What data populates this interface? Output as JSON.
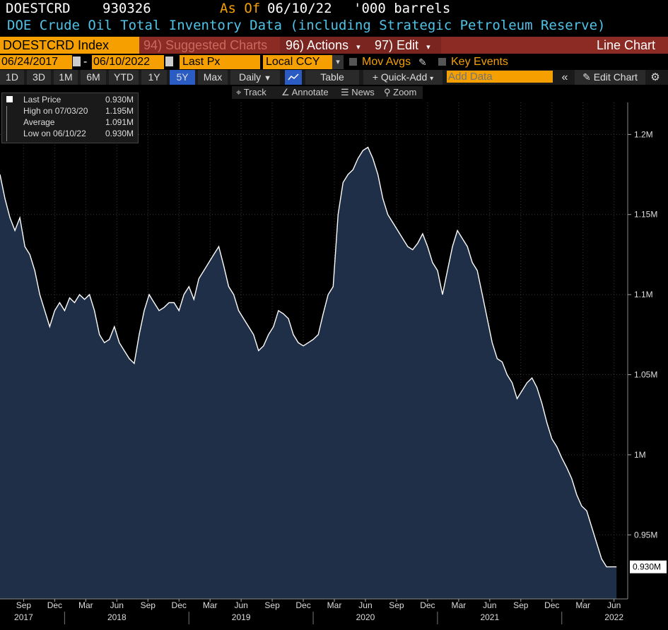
{
  "header": {
    "ticker": "DOESTCRD",
    "last_value": "930326",
    "as_of_label": "As Of",
    "as_of_date": "06/10/22",
    "units": "'000 barrels",
    "title": "DOE Crude Oil Total Inventory Data (including Strategic Petroleum Reserve)"
  },
  "toolbar": {
    "security": "DOESTCRD Index",
    "suggested_charts": "94) Suggested Charts",
    "actions": "96) Actions",
    "edit": "97) Edit",
    "chart_type": "Line Chart"
  },
  "range": {
    "start_date": "06/24/2017",
    "separator": "-",
    "end_date": "06/10/2022",
    "field": "Last Px",
    "currency": "Local CCY",
    "mov_avgs": "Mov Avgs",
    "key_events": "Key Events"
  },
  "timeframes": [
    "1D",
    "3D",
    "1M",
    "6M",
    "YTD",
    "1Y",
    "5Y",
    "Max"
  ],
  "active_timeframe": "5Y",
  "periodicity": "Daily",
  "table_label": "Table",
  "quick_add": "+ Quick-Add",
  "add_data_placeholder": "Add Data",
  "edit_chart": "Edit Chart",
  "tools": [
    "Track",
    "Annotate",
    "News",
    "Zoom"
  ],
  "legend": [
    {
      "label": "Last Price",
      "value": "0.930M"
    },
    {
      "label": "High on 07/03/20",
      "value": "1.195M"
    },
    {
      "label": "Average",
      "value": "1.091M"
    },
    {
      "label": "Low on 06/10/22",
      "value": "0.930M"
    }
  ],
  "colors": {
    "accent": "#f5a000",
    "area_fill": "#1f2f47",
    "line": "#ffffff",
    "header_bar": "#8b2b24",
    "title_cyan": "#4fc3e8"
  },
  "chart_data": {
    "type": "area",
    "ylim": [
      0.91,
      1.22
    ],
    "y_ticks": [
      0.95,
      1.0,
      1.05,
      1.1,
      1.15,
      1.2
    ],
    "y_tick_labels": [
      "0.95M",
      "1M",
      "1.05M",
      "1.1M",
      "1.15M",
      "1.2M"
    ],
    "last_label": "0.930M",
    "x_ticks": [
      {
        "t": 2017.67,
        "label": "Sep"
      },
      {
        "t": 2017.92,
        "label": "Dec"
      },
      {
        "t": 2018.17,
        "label": "Mar"
      },
      {
        "t": 2018.42,
        "label": "Jun"
      },
      {
        "t": 2018.67,
        "label": "Sep"
      },
      {
        "t": 2018.92,
        "label": "Dec"
      },
      {
        "t": 2019.17,
        "label": "Mar"
      },
      {
        "t": 2019.42,
        "label": "Jun"
      },
      {
        "t": 2019.67,
        "label": "Sep"
      },
      {
        "t": 2019.92,
        "label": "Dec"
      },
      {
        "t": 2020.17,
        "label": "Mar"
      },
      {
        "t": 2020.42,
        "label": "Jun"
      },
      {
        "t": 2020.67,
        "label": "Sep"
      },
      {
        "t": 2020.92,
        "label": "Dec"
      },
      {
        "t": 2021.17,
        "label": "Mar"
      },
      {
        "t": 2021.42,
        "label": "Jun"
      },
      {
        "t": 2021.67,
        "label": "Sep"
      },
      {
        "t": 2021.92,
        "label": "Dec"
      },
      {
        "t": 2022.17,
        "label": "Mar"
      },
      {
        "t": 2022.42,
        "label": "Jun"
      }
    ],
    "x_years": [
      {
        "t": 2017.67,
        "label": "2017"
      },
      {
        "t": 2018.42,
        "label": "2018"
      },
      {
        "t": 2019.42,
        "label": "2019"
      },
      {
        "t": 2020.42,
        "label": "2020"
      },
      {
        "t": 2021.42,
        "label": "2021"
      },
      {
        "t": 2022.42,
        "label": "2022"
      }
    ],
    "xlim": [
      2017.48,
      2022.53
    ],
    "series": [
      {
        "x": [
          2017.48,
          2017.52,
          2017.56,
          2017.6,
          2017.64,
          2017.68,
          2017.72,
          2017.76,
          2017.8,
          2017.84,
          2017.88,
          2017.92,
          2017.96,
          2018.0,
          2018.04,
          2018.08,
          2018.12,
          2018.16,
          2018.2,
          2018.24,
          2018.28,
          2018.32,
          2018.36,
          2018.4,
          2018.44,
          2018.48,
          2018.52,
          2018.56,
          2018.6,
          2018.64,
          2018.68,
          2018.72,
          2018.76,
          2018.8,
          2018.84,
          2018.88,
          2018.92,
          2018.96,
          2019.0,
          2019.04,
          2019.08,
          2019.12,
          2019.16,
          2019.2,
          2019.24,
          2019.28,
          2019.32,
          2019.36,
          2019.4,
          2019.44,
          2019.48,
          2019.52,
          2019.56,
          2019.6,
          2019.64,
          2019.68,
          2019.72,
          2019.76,
          2019.8,
          2019.84,
          2019.88,
          2019.92,
          2019.96,
          2020.0,
          2020.04,
          2020.08,
          2020.12,
          2020.16,
          2020.2,
          2020.24,
          2020.28,
          2020.32,
          2020.36,
          2020.4,
          2020.44,
          2020.48,
          2020.52,
          2020.56,
          2020.6,
          2020.64,
          2020.68,
          2020.72,
          2020.76,
          2020.8,
          2020.84,
          2020.88,
          2020.92,
          2020.96,
          2021.0,
          2021.04,
          2021.08,
          2021.12,
          2021.16,
          2021.2,
          2021.24,
          2021.28,
          2021.32,
          2021.36,
          2021.4,
          2021.44,
          2021.48,
          2021.52,
          2021.56,
          2021.6,
          2021.64,
          2021.68,
          2021.72,
          2021.76,
          2021.8,
          2021.84,
          2021.88,
          2021.92,
          2021.96,
          2022.0,
          2022.04,
          2022.08,
          2022.12,
          2022.16,
          2022.2,
          2022.24,
          2022.28,
          2022.32,
          2022.36,
          2022.4,
          2022.44
        ],
        "y": [
          1.175,
          1.16,
          1.148,
          1.14,
          1.148,
          1.13,
          1.125,
          1.115,
          1.1,
          1.09,
          1.08,
          1.09,
          1.095,
          1.09,
          1.098,
          1.095,
          1.1,
          1.097,
          1.1,
          1.09,
          1.075,
          1.07,
          1.072,
          1.08,
          1.07,
          1.065,
          1.06,
          1.057,
          1.075,
          1.09,
          1.1,
          1.095,
          1.09,
          1.092,
          1.095,
          1.095,
          1.09,
          1.1,
          1.105,
          1.097,
          1.11,
          1.115,
          1.12,
          1.125,
          1.13,
          1.118,
          1.105,
          1.1,
          1.09,
          1.085,
          1.08,
          1.075,
          1.065,
          1.068,
          1.075,
          1.08,
          1.09,
          1.088,
          1.085,
          1.075,
          1.07,
          1.068,
          1.07,
          1.072,
          1.075,
          1.088,
          1.1,
          1.105,
          1.15,
          1.17,
          1.175,
          1.178,
          1.185,
          1.19,
          1.192,
          1.185,
          1.175,
          1.16,
          1.15,
          1.145,
          1.14,
          1.135,
          1.13,
          1.128,
          1.132,
          1.138,
          1.13,
          1.12,
          1.115,
          1.1,
          1.115,
          1.13,
          1.14,
          1.135,
          1.13,
          1.12,
          1.115,
          1.1,
          1.085,
          1.07,
          1.06,
          1.058,
          1.05,
          1.045,
          1.035,
          1.04,
          1.045,
          1.048,
          1.042,
          1.032,
          1.02,
          1.01,
          1.005,
          0.998,
          0.992,
          0.985,
          0.975,
          0.968,
          0.965,
          0.955,
          0.945,
          0.935,
          0.93,
          0.93,
          0.93
        ]
      }
    ]
  }
}
